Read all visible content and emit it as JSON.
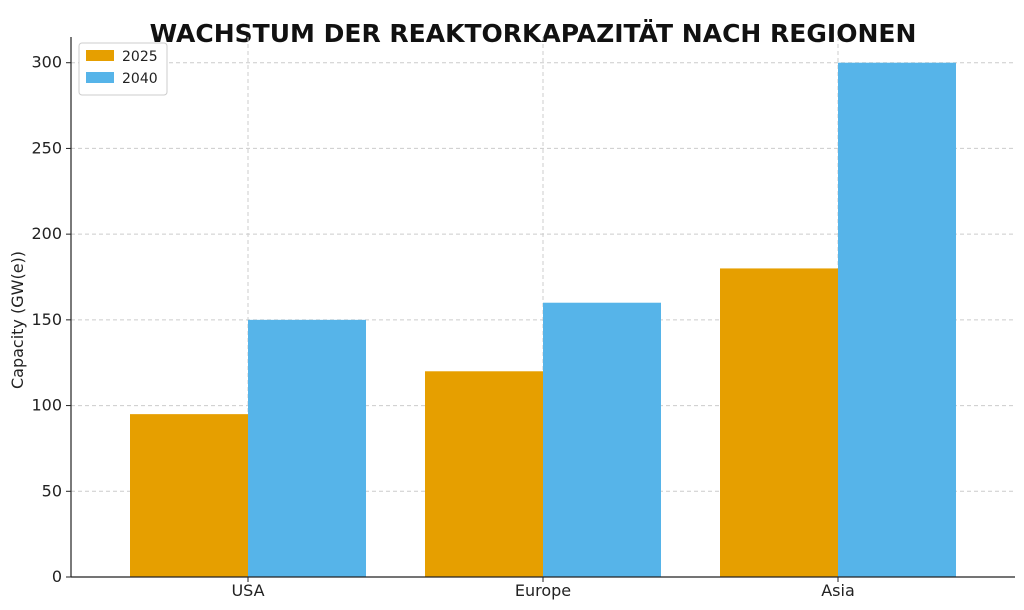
{
  "chart_data": {
    "type": "bar",
    "title": "WACHSTUM DER REAKTORKAPAZITÄT NACH REGIONEN",
    "xlabel": "",
    "ylabel": "Capacity (GW(e))",
    "categories": [
      "USA",
      "Europe",
      "Asia"
    ],
    "series": [
      {
        "name": "2025",
        "values": [
          95,
          120,
          180
        ],
        "color": "#E69F00"
      },
      {
        "name": "2040",
        "values": [
          150,
          160,
          300
        ],
        "color": "#56B4E9"
      }
    ],
    "ylim": [
      0,
      315
    ],
    "yticks": [
      0,
      50,
      100,
      150,
      200,
      250,
      300
    ],
    "grid": true,
    "legend_position": "top-left"
  }
}
